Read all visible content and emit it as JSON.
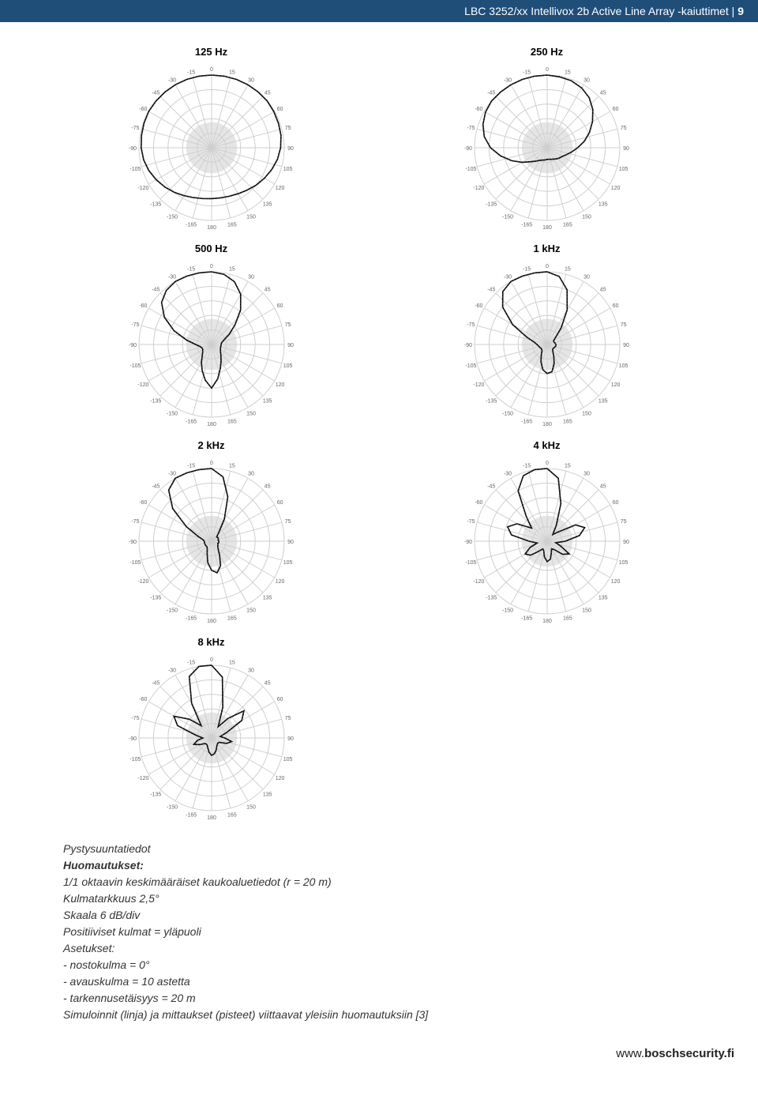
{
  "header": {
    "title": "LBC 3252/xx Intellivox 2b Active Line Array -kaiuttimet",
    "separator": " | ",
    "page": "9",
    "bg_color": "#1f4e79",
    "text_color": "#ffffff"
  },
  "polar_common": {
    "size": 220,
    "rings": 5,
    "ring_color": "#cfcfcf",
    "spoke_step_deg": 15,
    "ang_labels": [
      "0",
      "15",
      "30",
      "45",
      "60",
      "75",
      "90",
      "105",
      "120",
      "135",
      "150",
      "165",
      "180",
      "-165",
      "-150",
      "-135",
      "-120",
      "-105",
      "-90",
      "-75",
      "-60",
      "-45",
      "-30",
      "-15"
    ],
    "center_fill": "#e5e5e5",
    "pattern_color": "#000000"
  },
  "charts": [
    {
      "label": "125 Hz",
      "pattern_radii": [
        1.0,
        1.0,
        1.0,
        1.0,
        1.0,
        1.0,
        0.99,
        0.98,
        0.97,
        0.95,
        0.92,
        0.88,
        0.84,
        0.8,
        0.76,
        0.73,
        0.71,
        0.7,
        0.7,
        0.71,
        0.73,
        0.76,
        0.8,
        0.84,
        0.88,
        0.92,
        0.95,
        0.97,
        0.98,
        0.99,
        1.0,
        1.0,
        1.0,
        1.0,
        1.0,
        1.0
      ]
    },
    {
      "label": "250 Hz",
      "pattern_radii": [
        1.0,
        0.99,
        0.98,
        0.95,
        0.9,
        0.82,
        0.72,
        0.62,
        0.52,
        0.42,
        0.34,
        0.28,
        0.24,
        0.22,
        0.2,
        0.18,
        0.17,
        0.16,
        0.16,
        0.17,
        0.18,
        0.2,
        0.24,
        0.3,
        0.4,
        0.52,
        0.65,
        0.78,
        0.88,
        0.94,
        0.98,
        1.0,
        1.0,
        1.0,
        1.0,
        1.0
      ]
    },
    {
      "label": "500 Hz",
      "pattern_radii": [
        1.0,
        0.98,
        0.92,
        0.8,
        0.62,
        0.42,
        0.28,
        0.18,
        0.14,
        0.13,
        0.13,
        0.13,
        0.14,
        0.16,
        0.2,
        0.26,
        0.35,
        0.48,
        0.6,
        0.5,
        0.38,
        0.28,
        0.2,
        0.16,
        0.14,
        0.14,
        0.16,
        0.22,
        0.35,
        0.55,
        0.75,
        0.9,
        0.97,
        1.0,
        1.0,
        1.0
      ]
    },
    {
      "label": "1 kHz",
      "pattern_radii": [
        1.0,
        0.95,
        0.8,
        0.55,
        0.3,
        0.15,
        0.1,
        0.1,
        0.11,
        0.12,
        0.12,
        0.11,
        0.1,
        0.1,
        0.12,
        0.18,
        0.28,
        0.38,
        0.4,
        0.35,
        0.25,
        0.16,
        0.11,
        0.1,
        0.1,
        0.11,
        0.12,
        0.14,
        0.18,
        0.3,
        0.55,
        0.8,
        0.95,
        1.0,
        1.0,
        1.0
      ]
    },
    {
      "label": "2 kHz",
      "pattern_radii": [
        1.0,
        0.9,
        0.65,
        0.35,
        0.15,
        0.09,
        0.1,
        0.1,
        0.09,
        0.1,
        0.1,
        0.09,
        0.1,
        0.11,
        0.14,
        0.22,
        0.36,
        0.44,
        0.4,
        0.3,
        0.18,
        0.12,
        0.1,
        0.1,
        0.1,
        0.1,
        0.1,
        0.1,
        0.12,
        0.2,
        0.4,
        0.7,
        0.92,
        1.0,
        1.0,
        1.0
      ]
    },
    {
      "label": "4 kHz",
      "pattern_radii": [
        1.0,
        0.88,
        0.55,
        0.25,
        0.12,
        0.2,
        0.45,
        0.55,
        0.45,
        0.25,
        0.12,
        0.2,
        0.35,
        0.28,
        0.15,
        0.12,
        0.17,
        0.25,
        0.28,
        0.22,
        0.14,
        0.12,
        0.18,
        0.3,
        0.35,
        0.25,
        0.14,
        0.25,
        0.5,
        0.58,
        0.48,
        0.28,
        0.45,
        0.8,
        0.96,
        1.0
      ]
    },
    {
      "label": "8 kHz",
      "pattern_radii": [
        1.0,
        0.85,
        0.45,
        0.18,
        0.35,
        0.58,
        0.48,
        0.22,
        0.12,
        0.18,
        0.28,
        0.22,
        0.12,
        0.11,
        0.12,
        0.14,
        0.18,
        0.22,
        0.24,
        0.2,
        0.15,
        0.12,
        0.11,
        0.12,
        0.18,
        0.26,
        0.2,
        0.12,
        0.22,
        0.5,
        0.6,
        0.4,
        0.22,
        0.55,
        0.9,
        1.0
      ]
    }
  ],
  "notes": {
    "title": "Pystysuuntatiedot",
    "subtitle": "Huomautukset:",
    "lines": [
      "1/1 oktaavin keskimääräiset kaukoaluetiedot (r = 20 m)",
      "Kulmatarkkuus 2,5°",
      "Skaala 6 dB/div",
      "Positiiviset kulmat = yläpuoli",
      "Asetukset:",
      "- nostokulma = 0°",
      "- avauskulma = 10 astetta",
      "- tarkennusetäisyys = 20 m",
      "Simuloinnit (linja) ja mittaukset (pisteet) viittaavat yleisiin huomautuksiin [3]"
    ]
  },
  "footer": {
    "prefix": "www.",
    "domain": "boschsecurity.fi"
  }
}
